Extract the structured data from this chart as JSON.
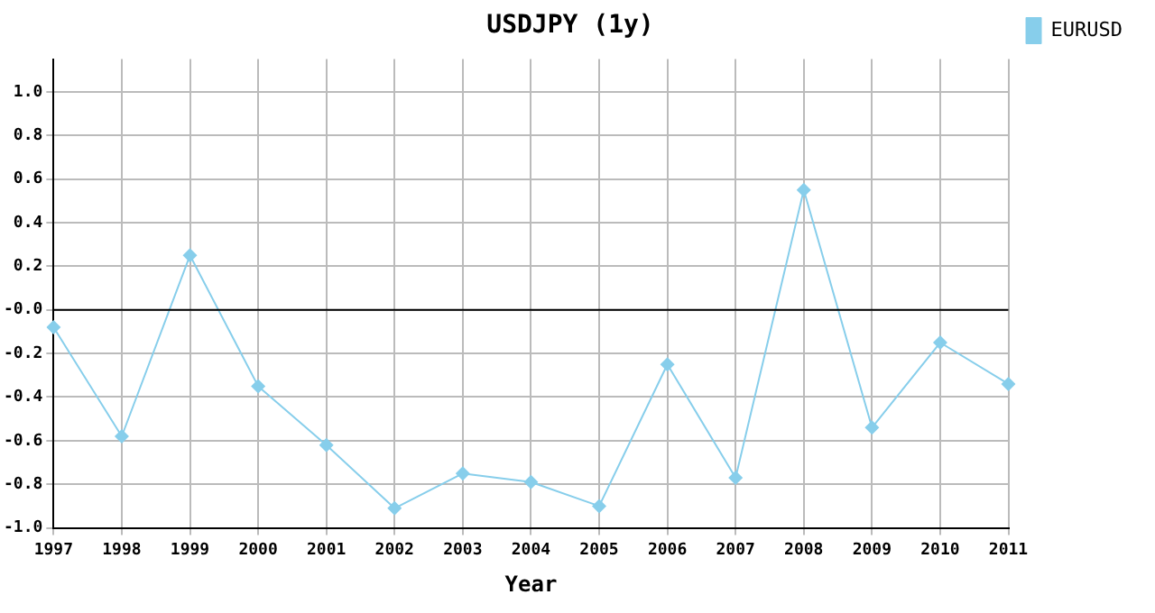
{
  "chart_data": {
    "type": "line",
    "title": "USDJPY (1y)",
    "xlabel": "Year",
    "categories": [
      "1997",
      "1998",
      "1999",
      "2000",
      "2001",
      "2002",
      "2003",
      "2004",
      "2005",
      "2006",
      "2007",
      "2008",
      "2009",
      "2010",
      "2011"
    ],
    "series": [
      {
        "name": "EURUSD",
        "color": "#87ceeb",
        "values": [
          -0.08,
          -0.58,
          0.25,
          -0.35,
          -0.62,
          -0.91,
          -0.75,
          -0.79,
          -0.9,
          -0.25,
          -0.77,
          0.55,
          -0.54,
          -0.15,
          -0.34
        ]
      }
    ],
    "ylim": [
      -1.0,
      1.15
    ],
    "yticks": [
      {
        "value": -1.0,
        "label": "-1.0"
      },
      {
        "value": -0.8,
        "label": "-0.8"
      },
      {
        "value": -0.6,
        "label": "-0.6"
      },
      {
        "value": -0.4,
        "label": "-0.4"
      },
      {
        "value": -0.2,
        "label": "-0.2"
      },
      {
        "value": 0,
        "label": "-0.0"
      },
      {
        "value": 0.2,
        "label": "0.2"
      },
      {
        "value": 0.4,
        "label": "0.4"
      },
      {
        "value": 0.6,
        "label": "0.6"
      },
      {
        "value": 0.8,
        "label": "0.8"
      },
      {
        "value": 1.0,
        "label": "1.0"
      }
    ],
    "ref_lines": [
      {
        "axis": "y",
        "value": 0,
        "color": "#000000"
      }
    ],
    "grid": true,
    "legend": "top right",
    "marker": "diamond",
    "line_style": "solid"
  }
}
